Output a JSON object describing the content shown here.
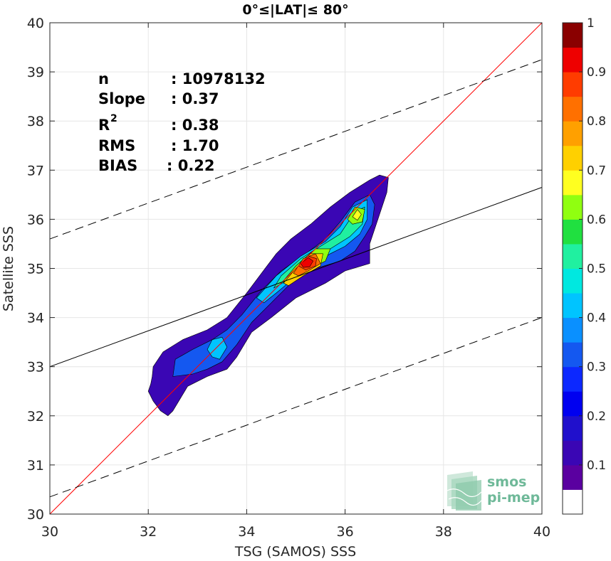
{
  "chart_data": {
    "type": "heatmap",
    "title": "0°≤|LAT|≤ 80°",
    "xlabel": "TSG (SAMOS) SSS",
    "ylabel": "Satellite SSS",
    "xlim": [
      30,
      40
    ],
    "ylim": [
      30,
      40
    ],
    "xticks": [
      "30",
      "32",
      "34",
      "36",
      "38",
      "40"
    ],
    "yticks": [
      "30",
      "31",
      "32",
      "33",
      "34",
      "35",
      "36",
      "37",
      "38",
      "39",
      "40"
    ],
    "grid": true,
    "stats": [
      {
        "label": "n",
        "value": ": 10978132"
      },
      {
        "label": "Slope",
        "value": ": 0.37"
      },
      {
        "label": "R",
        "sup": "2",
        "value": ": 0.38"
      },
      {
        "label": "RMS",
        "value": ": 1.70"
      },
      {
        "label": "BIAS",
        "value": ": 0.22"
      }
    ],
    "lines": [
      {
        "kind": "one-to-one",
        "color": "#ff0000",
        "style": "solid",
        "points": [
          [
            30,
            30
          ],
          [
            40,
            40
          ]
        ]
      },
      {
        "kind": "regression",
        "color": "#000000",
        "style": "solid",
        "points": [
          [
            30,
            33.0
          ],
          [
            40,
            36.65
          ]
        ]
      },
      {
        "kind": "upper-bound",
        "color": "#000000",
        "style": "dashed",
        "points": [
          [
            30,
            35.6
          ],
          [
            40,
            39.25
          ]
        ]
      },
      {
        "kind": "lower-bound",
        "color": "#000000",
        "style": "dashed",
        "points": [
          [
            30,
            30.35
          ],
          [
            40,
            34.0
          ]
        ]
      }
    ],
    "colorbar": {
      "ticks": [
        "0.1",
        "0.2",
        "0.3",
        "0.4",
        "0.5",
        "0.6",
        "0.7",
        "0.8",
        "0.9",
        "1"
      ],
      "levels": 20,
      "colors": [
        "#ffffff",
        "#5a00a0",
        "#3a06b4",
        "#2010cc",
        "#0000f0",
        "#0c28ff",
        "#1458f0",
        "#0a90ff",
        "#00c4ff",
        "#00e8e0",
        "#20f0a0",
        "#20e040",
        "#90ff10",
        "#ffff20",
        "#ffd000",
        "#ffa000",
        "#ff7000",
        "#ff3c00",
        "#ee0000",
        "#8a0000"
      ]
    },
    "contours": [
      {
        "level": 0.05,
        "color": "#3a06b4",
        "points": [
          [
            32.4,
            32.0
          ],
          [
            32.25,
            32.1
          ],
          [
            32.1,
            32.3
          ],
          [
            32.0,
            32.5
          ],
          [
            32.05,
            32.65
          ],
          [
            32.08,
            32.8
          ],
          [
            32.1,
            33.0
          ],
          [
            32.3,
            33.3
          ],
          [
            32.7,
            33.55
          ],
          [
            33.2,
            33.75
          ],
          [
            33.6,
            34.0
          ],
          [
            34.0,
            34.5
          ],
          [
            34.3,
            34.9
          ],
          [
            34.6,
            35.3
          ],
          [
            34.9,
            35.6
          ],
          [
            35.3,
            35.9
          ],
          [
            35.7,
            36.25
          ],
          [
            36.1,
            36.55
          ],
          [
            36.5,
            36.8
          ],
          [
            36.7,
            36.9
          ],
          [
            36.88,
            36.85
          ],
          [
            36.85,
            36.55
          ],
          [
            36.7,
            36.1
          ],
          [
            36.5,
            35.5
          ],
          [
            36.5,
            35.1
          ],
          [
            36.0,
            34.95
          ],
          [
            35.6,
            34.7
          ],
          [
            35.0,
            34.4
          ],
          [
            34.5,
            34.0
          ],
          [
            34.1,
            33.7
          ],
          [
            33.8,
            33.2
          ],
          [
            33.6,
            32.95
          ],
          [
            33.2,
            32.8
          ],
          [
            32.8,
            32.6
          ],
          [
            32.5,
            32.1
          ]
        ]
      },
      {
        "level": 0.2,
        "color": "#1458f0",
        "points": [
          [
            32.5,
            32.8
          ],
          [
            32.55,
            33.15
          ],
          [
            32.9,
            33.35
          ],
          [
            33.3,
            33.55
          ],
          [
            33.6,
            33.75
          ],
          [
            33.9,
            34.05
          ],
          [
            34.3,
            34.55
          ],
          [
            34.7,
            34.95
          ],
          [
            35.2,
            35.3
          ],
          [
            35.6,
            35.6
          ],
          [
            35.9,
            35.95
          ],
          [
            36.2,
            36.35
          ],
          [
            36.5,
            36.5
          ],
          [
            36.6,
            36.3
          ],
          [
            36.55,
            35.9
          ],
          [
            36.4,
            35.65
          ],
          [
            36.2,
            35.35
          ],
          [
            35.9,
            35.15
          ],
          [
            35.4,
            35.0
          ],
          [
            34.9,
            34.7
          ],
          [
            34.5,
            34.3
          ],
          [
            34.1,
            33.9
          ],
          [
            33.8,
            33.45
          ],
          [
            33.5,
            33.1
          ],
          [
            33.2,
            32.95
          ],
          [
            32.9,
            32.85
          ]
        ]
      },
      {
        "level": 0.35,
        "color": "#00c4ff",
        "points": [
          [
            33.2,
            33.35
          ],
          [
            33.3,
            33.55
          ],
          [
            33.5,
            33.6
          ],
          [
            33.6,
            33.4
          ],
          [
            33.45,
            33.15
          ],
          [
            33.3,
            33.2
          ]
        ]
      },
      {
        "level": 0.35,
        "color": "#00c4ff",
        "points": [
          [
            34.2,
            34.4
          ],
          [
            34.6,
            34.85
          ],
          [
            35.1,
            35.25
          ],
          [
            35.6,
            35.55
          ],
          [
            35.9,
            35.85
          ],
          [
            36.15,
            36.25
          ],
          [
            36.45,
            36.4
          ],
          [
            36.45,
            36.0
          ],
          [
            36.3,
            35.7
          ],
          [
            36.0,
            35.45
          ],
          [
            35.7,
            35.3
          ],
          [
            35.3,
            35.05
          ],
          [
            34.9,
            34.75
          ],
          [
            34.6,
            34.5
          ],
          [
            34.35,
            34.3
          ]
        ]
      },
      {
        "level": 0.45,
        "color": "#20f0a0",
        "points": [
          [
            34.55,
            34.6
          ],
          [
            34.7,
            34.85
          ],
          [
            35.1,
            35.2
          ],
          [
            35.5,
            35.45
          ],
          [
            35.9,
            35.7
          ],
          [
            36.2,
            36.15
          ],
          [
            36.4,
            36.25
          ],
          [
            36.35,
            35.9
          ],
          [
            36.1,
            35.65
          ],
          [
            35.7,
            35.4
          ],
          [
            35.3,
            35.1
          ],
          [
            34.9,
            34.8
          ]
        ]
      },
      {
        "level": 0.55,
        "color": "#90ff10",
        "points": [
          [
            34.75,
            34.75
          ],
          [
            35.0,
            35.05
          ],
          [
            35.4,
            35.4
          ],
          [
            35.7,
            35.4
          ],
          [
            35.6,
            35.15
          ],
          [
            35.2,
            34.95
          ],
          [
            34.9,
            34.7
          ]
        ]
      },
      {
        "level": 0.55,
        "color": "#90ff10",
        "points": [
          [
            36.05,
            36.0
          ],
          [
            36.2,
            36.25
          ],
          [
            36.4,
            36.2
          ],
          [
            36.35,
            35.95
          ],
          [
            36.15,
            35.9
          ]
        ]
      },
      {
        "level": 0.6,
        "color": "#ffff20",
        "points": [
          [
            36.15,
            36.05
          ],
          [
            36.25,
            36.2
          ],
          [
            36.33,
            36.1
          ],
          [
            36.25,
            35.98
          ]
        ]
      },
      {
        "level": 0.65,
        "color": "#ffd000",
        "points": [
          [
            34.75,
            34.7
          ],
          [
            35.0,
            35.0
          ],
          [
            35.3,
            35.3
          ],
          [
            35.55,
            35.3
          ],
          [
            35.5,
            35.05
          ],
          [
            35.15,
            34.85
          ],
          [
            34.85,
            34.65
          ]
        ]
      },
      {
        "level": 0.75,
        "color": "#ff7000",
        "points": [
          [
            34.95,
            34.9
          ],
          [
            35.15,
            35.2
          ],
          [
            35.4,
            35.3
          ],
          [
            35.5,
            35.1
          ],
          [
            35.25,
            34.95
          ],
          [
            35.05,
            34.85
          ]
        ]
      },
      {
        "level": 0.85,
        "color": "#ff3c00",
        "points": [
          [
            35.05,
            35.05
          ],
          [
            35.25,
            35.25
          ],
          [
            35.42,
            35.2
          ],
          [
            35.4,
            35.05
          ],
          [
            35.2,
            34.97
          ]
        ]
      },
      {
        "level": 0.95,
        "color": "#ee0000",
        "points": [
          [
            35.1,
            35.1
          ],
          [
            35.25,
            35.22
          ],
          [
            35.35,
            35.15
          ],
          [
            35.28,
            35.03
          ],
          [
            35.15,
            35.02
          ]
        ]
      }
    ]
  },
  "logo": {
    "line1": "smos",
    "line2": "pi-mep",
    "color": "#6fb999"
  }
}
